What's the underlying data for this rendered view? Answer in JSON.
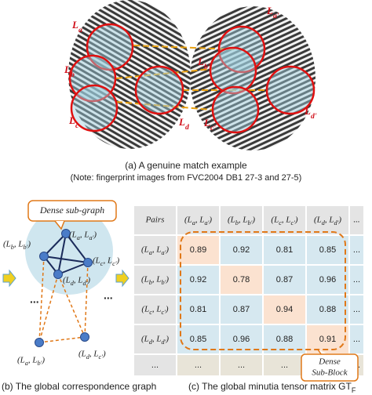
{
  "panel_a": {
    "left_labels": [
      "La",
      "Lb",
      "Lc",
      "Ld"
    ],
    "right_labels": [
      "La'",
      "Lb'",
      "Lc'",
      "Ld'"
    ],
    "caption": "(a) A genuine match example",
    "note": "(Note: fingerprint images from FVC2004 DB1 27-3 and 27-5)"
  },
  "panel_b": {
    "callout": "Dense sub-graph",
    "nodes": [
      "(La, La')",
      "(Lb, Lb')",
      "(Lc, Lc')",
      "(Ld, Ld')",
      "(La, Lb')",
      "(Ld, Lc')"
    ],
    "ellipsis": "...",
    "caption": "(b) The global correspondence graph"
  },
  "panel_c": {
    "header": [
      "Pairs",
      "(La, La')",
      "(Lb, Lb')",
      "(Lc, Lc')",
      "(Ld, Ld')",
      "..."
    ],
    "rows": [
      {
        "label": "(La, La')",
        "values": [
          0.89,
          0.92,
          0.81,
          0.85
        ],
        "more": "..."
      },
      {
        "label": "(Lb, Lb')",
        "values": [
          0.92,
          0.78,
          0.87,
          0.96
        ],
        "more": "..."
      },
      {
        "label": "(Lc, Lc')",
        "values": [
          0.81,
          0.87,
          0.94,
          0.88
        ],
        "more": "..."
      },
      {
        "label": "(Ld, Ld')",
        "values": [
          0.85,
          0.96,
          0.88,
          0.91
        ],
        "more": "..."
      }
    ],
    "last_row": [
      "...",
      "...",
      "...",
      "...",
      "...",
      "..."
    ],
    "callout": [
      "Dense",
      "Sub-Block"
    ],
    "caption": "(c) The global minutia tensor matrix GTF"
  }
}
